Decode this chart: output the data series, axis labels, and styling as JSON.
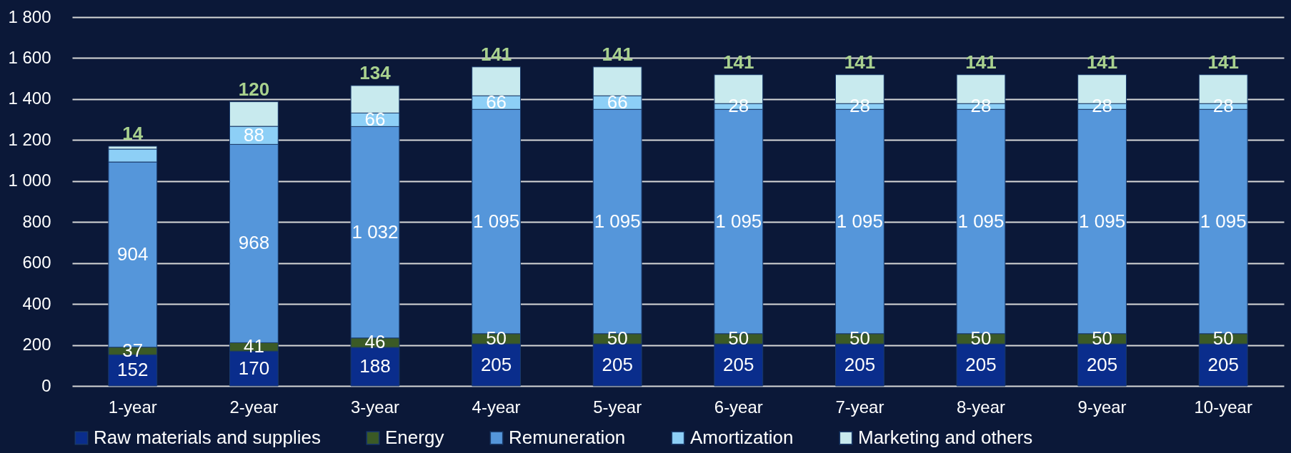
{
  "chart_data": {
    "type": "bar",
    "stacked": true,
    "categories": [
      "1-year",
      "2-year",
      "3-year",
      "4-year",
      "5-year",
      "6-year",
      "7-year",
      "8-year",
      "9-year",
      "10-year"
    ],
    "series": [
      {
        "name": "Raw materials and supplies",
        "color": "#0a2d8c",
        "values": [
          152,
          170,
          188,
          205,
          205,
          205,
          205,
          205,
          205,
          205
        ],
        "value_labels": [
          "152",
          "170",
          "188",
          "205",
          "205",
          "205",
          "205",
          "205",
          "205",
          "205"
        ]
      },
      {
        "name": "Energy",
        "color": "#3b5a26",
        "values": [
          37,
          41,
          46,
          50,
          50,
          50,
          50,
          50,
          50,
          50
        ],
        "value_labels": [
          "37",
          "41",
          "46",
          "50",
          "50",
          "50",
          "50",
          "50",
          "50",
          "50"
        ]
      },
      {
        "name": "Remuneration",
        "color": "#5596da",
        "values": [
          904,
          968,
          1032,
          1095,
          1095,
          1095,
          1095,
          1095,
          1095,
          1095
        ],
        "value_labels": [
          "904",
          "968",
          "1 032",
          "1 095",
          "1 095",
          "1 095",
          "1 095",
          "1 095",
          "1 095",
          "1 095"
        ]
      },
      {
        "name": "Amortization",
        "color": "#8dcff6",
        "values": [
          63,
          88,
          66,
          66,
          66,
          28,
          28,
          28,
          28,
          28
        ],
        "value_labels": [
          null,
          "88",
          "66",
          "66",
          "66",
          "28",
          "28",
          "28",
          "28",
          "28"
        ]
      },
      {
        "name": "Marketing and others",
        "color": "#c8eaee",
        "values": [
          14,
          120,
          134,
          141,
          141,
          141,
          141,
          141,
          141,
          141
        ],
        "value_labels": [
          "14",
          "120",
          "134",
          "141",
          "141",
          "141",
          "141",
          "141",
          "141",
          "141"
        ]
      }
    ],
    "ylim": [
      0,
      1800
    ],
    "yticks": [
      0,
      200,
      400,
      600,
      800,
      {
        "value": 1000,
        "label": "1 000"
      },
      {
        "value": 1200,
        "label": "1 200"
      },
      {
        "value": 1400,
        "label": "1 400"
      },
      {
        "value": 1600,
        "label": "1 600"
      },
      {
        "value": 1800,
        "label": "1 800"
      }
    ],
    "grid": "y",
    "legend": "bottom"
  }
}
